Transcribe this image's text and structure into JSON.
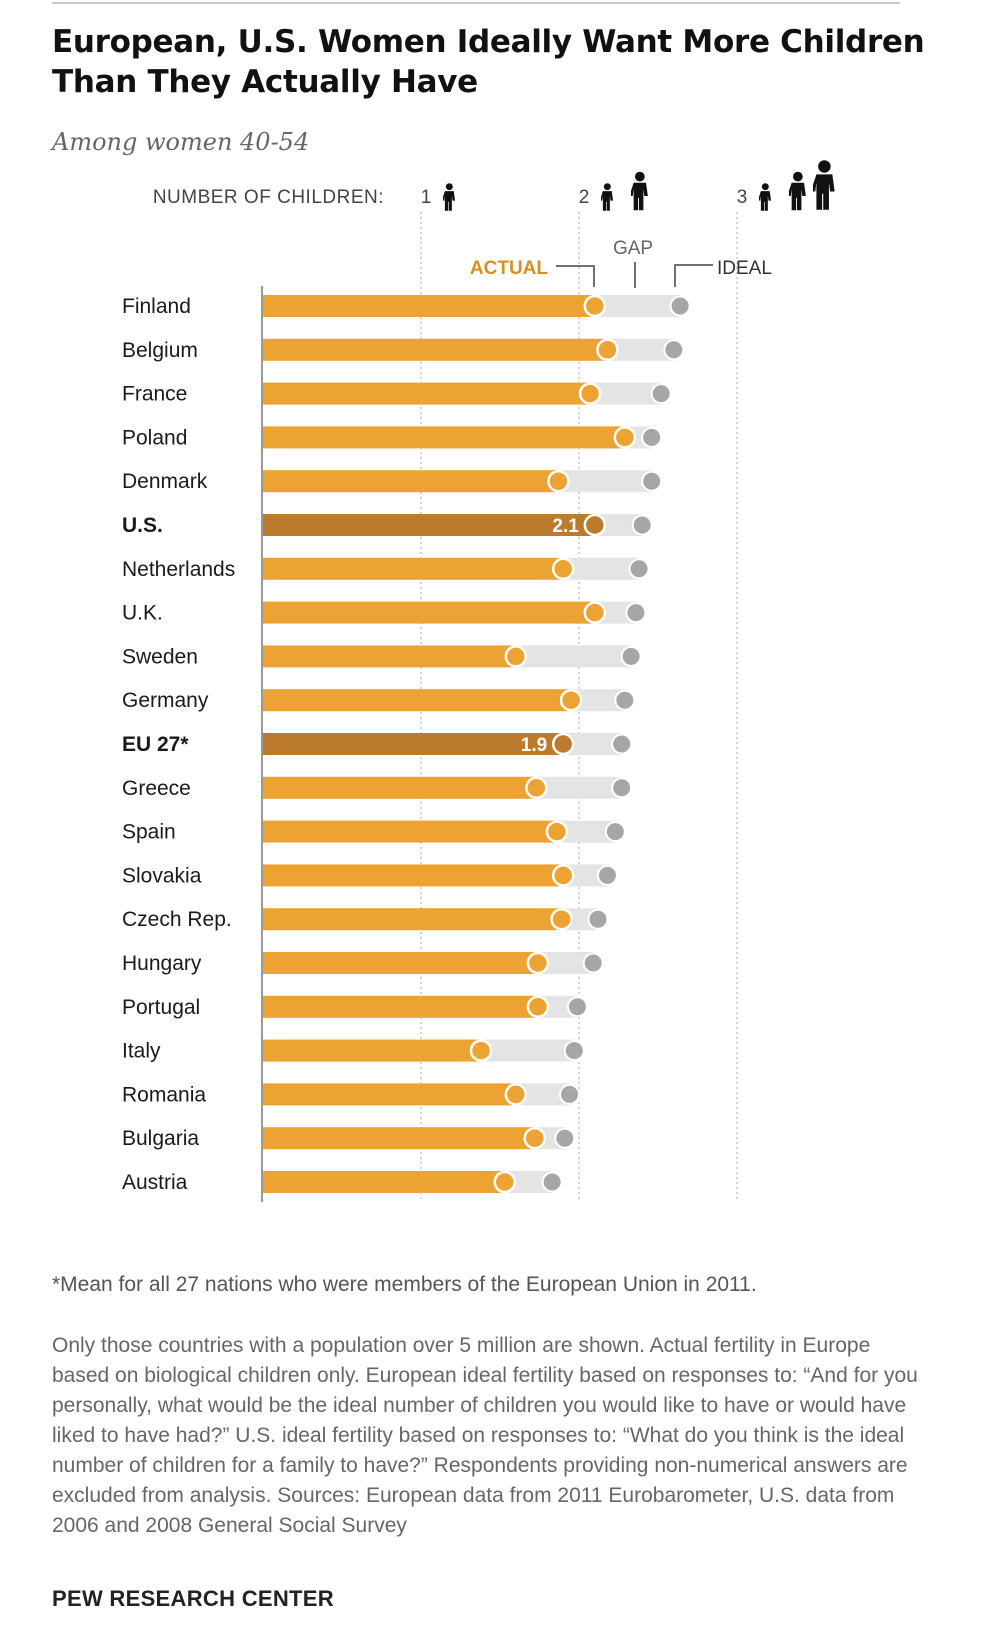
{
  "title": "European, U.S. Women Ideally Want More Children Than They Actually Have",
  "subtitle": "Among women 40-54",
  "footnote": "*Mean for all 27 nations who were members of the European Union in 2011.",
  "notes": "Only those countries with a population over 5 million are shown. Actual fertility in Europe based on biological children only. European ideal fertility based on responses to: “And for you personally, what would be the ideal number of children you would like to have or would have liked to have had?” U.S. ideal fertility based on responses to: “What do you think is the ideal number of children for a family to have?” Respondents providing non-numerical answers are excluded from analysis. Sources: European data from 2011 Eurobarometer, U.S. data from 2006 and 2008 General Social Survey",
  "source": "PEW RESEARCH CENTER",
  "colors": {
    "actual": "#EDA333",
    "highlight": "#BC7A2C",
    "gap": "#E4E4E4",
    "ideal": "#A6A6A6",
    "actual_label": "#D98E1F"
  },
  "chart_data": {
    "type": "bar",
    "orientation": "horizontal",
    "axis_label": "NUMBER OF CHILDREN:",
    "ticks": [
      1,
      2,
      3
    ],
    "xlim": [
      0,
      3.6
    ],
    "legend": {
      "actual": "ACTUAL",
      "gap": "GAP",
      "ideal": "IDEAL"
    },
    "icons": [
      "child-icon",
      "child-icon",
      "child-icon"
    ],
    "categories": [
      "Finland",
      "Belgium",
      "France",
      "Poland",
      "Denmark",
      "U.S.",
      "Netherlands",
      "U.K.",
      "Sweden",
      "Germany",
      "EU 27*",
      "Greece",
      "Spain",
      "Slovakia",
      "Czech Rep.",
      "Hungary",
      "Portugal",
      "Italy",
      "Romania",
      "Bulgaria",
      "Austria"
    ],
    "series": [
      {
        "name": "Actual",
        "values": [
          2.1,
          2.18,
          2.07,
          2.29,
          1.87,
          2.1,
          1.9,
          2.1,
          1.6,
          1.95,
          1.9,
          1.73,
          1.86,
          1.9,
          1.89,
          1.74,
          1.74,
          1.38,
          1.6,
          1.72,
          1.53
        ]
      },
      {
        "name": "Ideal",
        "values": [
          2.64,
          2.6,
          2.52,
          2.46,
          2.46,
          2.4,
          2.38,
          2.36,
          2.33,
          2.29,
          2.27,
          2.27,
          2.23,
          2.18,
          2.12,
          2.09,
          1.99,
          1.97,
          1.94,
          1.91,
          1.83
        ]
      }
    ],
    "highlighted": [
      "U.S.",
      "EU 27*"
    ],
    "value_labels": {
      "U.S.": "2.1",
      "EU 27*": "1.9"
    }
  }
}
